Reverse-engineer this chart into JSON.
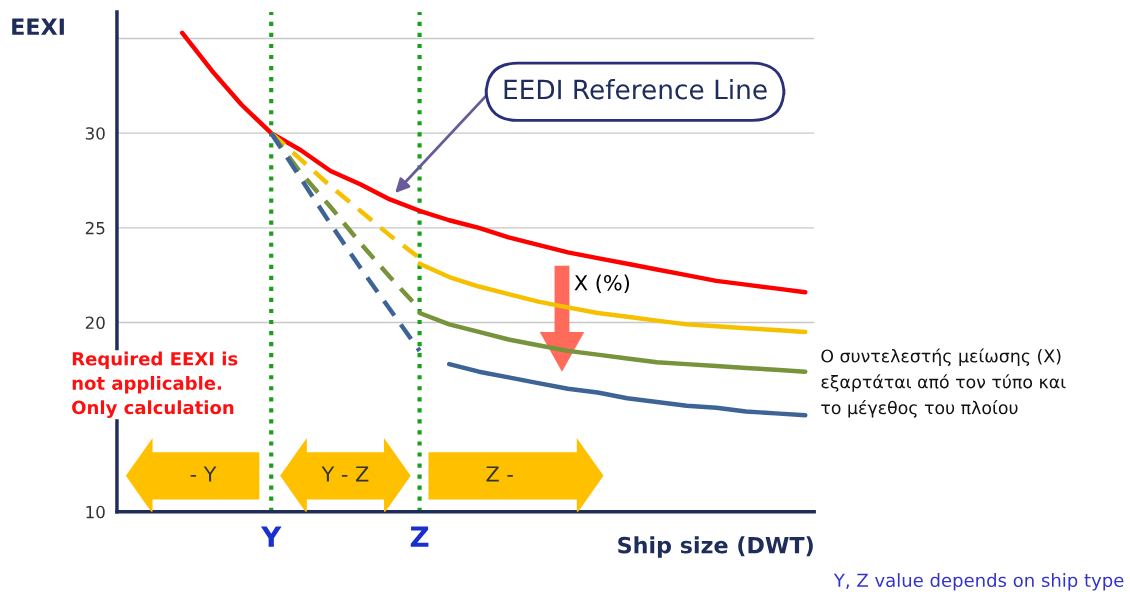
{
  "chart_data": {
    "type": "line",
    "ylabel": "EEXI",
    "xlabel": "Ship size (DWT)",
    "categories": [
      null,
      null,
      null,
      null,
      null,
      "Y",
      null,
      null,
      null,
      null,
      "Z",
      null,
      null,
      null,
      null,
      null,
      null,
      null,
      null,
      null,
      null,
      null,
      null,
      null
    ],
    "series": [
      {
        "color": "#ff0000",
        "line_style": "solid",
        "values": [
          null,
          null,
          35.3,
          33.3,
          31.5,
          30.0,
          29.1,
          28.0,
          27.3,
          26.5,
          25.9,
          25.4,
          25.0,
          24.5,
          24.1,
          23.7,
          23.4,
          23.1,
          22.8,
          22.5,
          22.2,
          22.0,
          21.8,
          21.6
        ]
      },
      {
        "color": "#f5c000",
        "line_style": "dashed",
        "values": [
          null,
          null,
          null,
          null,
          null,
          30.0,
          28.6,
          27.2,
          25.9,
          24.6,
          23.4,
          null,
          null,
          null,
          null,
          null,
          null,
          null,
          null,
          null,
          null,
          null,
          null,
          null
        ]
      },
      {
        "color": "#f5c000",
        "line_style": "solid",
        "values": [
          null,
          null,
          null,
          null,
          null,
          null,
          null,
          null,
          null,
          null,
          23.1,
          22.4,
          21.9,
          21.5,
          21.1,
          20.8,
          20.5,
          20.3,
          20.1,
          19.9,
          19.8,
          19.7,
          19.6,
          19.5
        ]
      },
      {
        "color": "#77933c",
        "line_style": "dashed",
        "values": [
          null,
          null,
          null,
          null,
          null,
          30.0,
          27.9,
          26.1,
          24.2,
          22.4,
          20.7,
          null,
          null,
          null,
          null,
          null,
          null,
          null,
          null,
          null,
          null,
          null,
          null,
          null
        ]
      },
      {
        "color": "#77933c",
        "line_style": "solid",
        "values": [
          null,
          null,
          null,
          null,
          null,
          null,
          null,
          null,
          null,
          null,
          20.5,
          19.9,
          19.5,
          19.1,
          18.8,
          18.5,
          18.3,
          18.1,
          17.9,
          17.8,
          17.7,
          17.6,
          17.5,
          17.4
        ]
      },
      {
        "color": "#3e6496",
        "line_style": "dashed",
        "values": [
          null,
          null,
          null,
          null,
          null,
          30.0,
          27.6,
          25.2,
          22.9,
          20.7,
          18.5,
          null,
          null,
          null,
          null,
          null,
          null,
          null,
          null,
          null,
          null,
          null,
          null,
          null
        ]
      },
      {
        "color": "#3e6496",
        "line_style": "solid",
        "values": [
          null,
          null,
          null,
          null,
          null,
          null,
          null,
          null,
          null,
          null,
          null,
          17.8,
          17.4,
          17.1,
          16.8,
          16.5,
          16.3,
          16.0,
          15.8,
          15.6,
          15.5,
          15.3,
          15.2,
          15.1
        ]
      }
    ],
    "ylim": [
      10,
      36.4
    ],
    "yticks": [
      10,
      20,
      25,
      30,
      {
        "value": 35,
        "label": null
      }
    ],
    "grid": "y",
    "ref_lines": [
      {
        "axis": "x",
        "value": "Y",
        "color": "#1aa01a",
        "line_style": "dotted"
      },
      {
        "axis": "x",
        "value": "Z",
        "color": "#1aa01a",
        "line_style": "dotted"
      }
    ],
    "annotations": [
      "EEDI Reference Line",
      "X (%)",
      "Required EEXI is\nnot applicable.\nOnly calculation",
      "Ο συντελεστής μείωσης (X)\nεξαρτάται από τον τύπο και\nτο μέγεθος του πλοίου",
      "- Y",
      "Y - Z",
      "Z -",
      "Y, Z value depends on ship type"
    ]
  }
}
